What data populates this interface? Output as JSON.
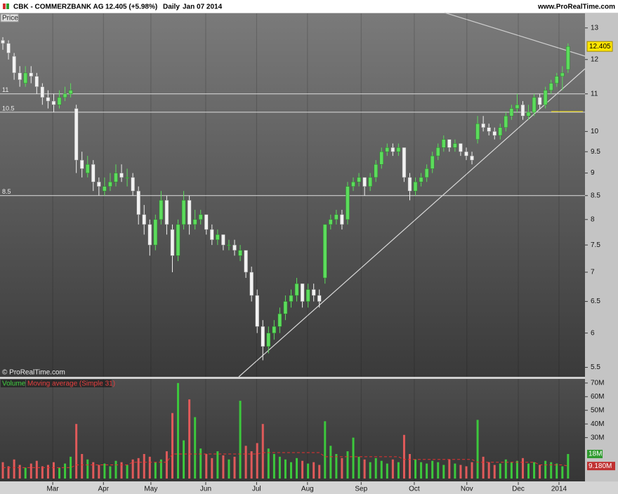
{
  "chart_data": {
    "type": "candlestick",
    "title": "CBK - COMMERZBANK AG",
    "last_price_label": "12.405 (+5.98%)",
    "interval": "Daily",
    "date": "Jan 07 2014",
    "source": "www.ProRealTime.com",
    "copyright": "© ProRealTime.com",
    "price_label": "Price",
    "last_price": 12.405,
    "log_scale": true,
    "ylim": [
      5.37,
      13.49
    ],
    "yticks": [
      13,
      12,
      11,
      10,
      9.5,
      9,
      8.5,
      8,
      7.5,
      7,
      6.5,
      6,
      5.5
    ],
    "xlim": [
      -0.5,
      103
    ],
    "xticks": [
      {
        "value": 8.83,
        "label": "Mar"
      },
      {
        "value": 17.8,
        "label": "Apr"
      },
      {
        "value": 26.2,
        "label": "May"
      },
      {
        "value": 35.9,
        "label": "Jun"
      },
      {
        "value": 44.9,
        "label": "Jul"
      },
      {
        "value": 53.9,
        "label": "Aug"
      },
      {
        "value": 63.4,
        "label": "Sep"
      },
      {
        "value": 72.8,
        "label": "Oct"
      },
      {
        "value": 82.1,
        "label": "Nov"
      },
      {
        "value": 91.2,
        "label": "Dec"
      },
      {
        "value": 98.4,
        "label": "2014"
      }
    ],
    "levels": [
      11,
      10.5,
      8.5
    ],
    "up_color": "#5cdc5c",
    "down_color": "#f2f2f2",
    "ohlc": [
      [
        12.6,
        12.7,
        12.3,
        12.5
      ],
      [
        12.5,
        12.6,
        12.0,
        12.2
      ],
      [
        12.1,
        12.2,
        11.4,
        11.6
      ],
      [
        11.6,
        11.8,
        11.2,
        11.4
      ],
      [
        11.3,
        11.8,
        11.2,
        11.6
      ],
      [
        11.6,
        11.8,
        11.3,
        11.5
      ],
      [
        11.5,
        11.6,
        11.0,
        11.2
      ],
      [
        11.2,
        11.3,
        10.7,
        10.9
      ],
      [
        10.9,
        11.1,
        10.6,
        10.8
      ],
      [
        10.8,
        11.0,
        10.5,
        10.7
      ],
      [
        10.7,
        11.1,
        10.6,
        10.9
      ],
      [
        10.9,
        11.2,
        10.8,
        11.0
      ],
      [
        11.0,
        11.3,
        10.9,
        11.1
      ],
      [
        10.6,
        10.7,
        9.0,
        9.3
      ],
      [
        9.3,
        9.5,
        8.9,
        9.1
      ],
      [
        9.0,
        9.4,
        8.9,
        9.2
      ],
      [
        9.2,
        9.3,
        8.6,
        8.8
      ],
      [
        8.8,
        8.9,
        8.5,
        8.7
      ],
      [
        8.6,
        8.9,
        8.5,
        8.7
      ],
      [
        8.7,
        9.0,
        8.6,
        8.8
      ],
      [
        8.8,
        9.2,
        8.7,
        9.0
      ],
      [
        9.0,
        9.2,
        8.8,
        8.9
      ],
      [
        8.9,
        9.1,
        8.7,
        8.9
      ],
      [
        8.9,
        9.0,
        8.5,
        8.6
      ],
      [
        8.6,
        8.7,
        7.9,
        8.1
      ],
      [
        8.1,
        8.3,
        7.7,
        7.9
      ],
      [
        7.9,
        8.0,
        7.3,
        7.5
      ],
      [
        7.5,
        8.1,
        7.4,
        8.0
      ],
      [
        8.0,
        8.6,
        7.9,
        8.4
      ],
      [
        8.4,
        8.5,
        7.7,
        7.9
      ],
      [
        7.8,
        7.9,
        7.0,
        7.3
      ],
      [
        7.3,
        8.0,
        7.2,
        7.9
      ],
      [
        7.9,
        8.6,
        7.8,
        8.4
      ],
      [
        8.4,
        8.5,
        7.7,
        7.9
      ],
      [
        7.9,
        8.2,
        7.8,
        8.0
      ],
      [
        8.0,
        8.2,
        7.9,
        8.1
      ],
      [
        8.1,
        8.1,
        7.7,
        7.8
      ],
      [
        7.8,
        7.9,
        7.5,
        7.6
      ],
      [
        7.6,
        7.8,
        7.5,
        7.7
      ],
      [
        7.7,
        7.7,
        7.4,
        7.5
      ],
      [
        7.5,
        7.6,
        7.4,
        7.5
      ],
      [
        7.5,
        7.6,
        7.3,
        7.4
      ],
      [
        7.3,
        7.5,
        7.2,
        7.4
      ],
      [
        7.4,
        7.4,
        6.9,
        7.0
      ],
      [
        7.0,
        7.1,
        6.5,
        6.6
      ],
      [
        6.6,
        6.7,
        6.0,
        6.1
      ],
      [
        6.1,
        6.2,
        5.6,
        5.8
      ],
      [
        5.8,
        6.1,
        5.7,
        6.0
      ],
      [
        6.0,
        6.2,
        5.9,
        6.1
      ],
      [
        6.1,
        6.4,
        6.0,
        6.3
      ],
      [
        6.3,
        6.6,
        6.2,
        6.5
      ],
      [
        6.5,
        6.7,
        6.4,
        6.6
      ],
      [
        6.6,
        6.9,
        6.5,
        6.8
      ],
      [
        6.8,
        6.8,
        6.4,
        6.5
      ],
      [
        6.5,
        6.8,
        6.4,
        6.7
      ],
      [
        6.7,
        6.8,
        6.5,
        6.6
      ],
      [
        6.6,
        6.7,
        6.4,
        6.5
      ],
      [
        6.9,
        7.9,
        6.8,
        7.9
      ],
      [
        7.9,
        8.1,
        7.8,
        8.0
      ],
      [
        8.0,
        8.2,
        7.9,
        8.1
      ],
      [
        8.1,
        8.2,
        7.8,
        7.9
      ],
      [
        8.0,
        8.8,
        7.9,
        8.7
      ],
      [
        8.7,
        8.9,
        8.6,
        8.8
      ],
      [
        8.8,
        9.0,
        8.7,
        8.9
      ],
      [
        8.9,
        8.9,
        8.5,
        8.7
      ],
      [
        8.7,
        9.0,
        8.6,
        8.9
      ],
      [
        8.9,
        9.3,
        8.8,
        9.2
      ],
      [
        9.2,
        9.6,
        9.1,
        9.5
      ],
      [
        9.5,
        9.7,
        9.4,
        9.6
      ],
      [
        9.6,
        9.7,
        9.4,
        9.5
      ],
      [
        9.5,
        9.7,
        9.4,
        9.6
      ],
      [
        9.6,
        9.6,
        8.8,
        8.9
      ],
      [
        8.9,
        9.0,
        8.4,
        8.6
      ],
      [
        8.6,
        8.9,
        8.5,
        8.8
      ],
      [
        8.8,
        9.0,
        8.7,
        8.9
      ],
      [
        8.9,
        9.2,
        8.8,
        9.1
      ],
      [
        9.1,
        9.5,
        9.0,
        9.4
      ],
      [
        9.4,
        9.7,
        9.3,
        9.6
      ],
      [
        9.6,
        9.9,
        9.5,
        9.8
      ],
      [
        9.8,
        9.8,
        9.5,
        9.6
      ],
      [
        9.6,
        9.8,
        9.5,
        9.7
      ],
      [
        9.7,
        9.7,
        9.4,
        9.5
      ],
      [
        9.5,
        9.6,
        9.3,
        9.4
      ],
      [
        9.4,
        9.5,
        9.2,
        9.3
      ],
      [
        9.8,
        10.4,
        9.7,
        10.2
      ],
      [
        10.2,
        10.4,
        10.0,
        10.1
      ],
      [
        10.1,
        10.2,
        9.9,
        10.0
      ],
      [
        10.0,
        10.1,
        9.8,
        9.9
      ],
      [
        9.9,
        10.2,
        9.8,
        10.1
      ],
      [
        10.1,
        10.5,
        10.0,
        10.4
      ],
      [
        10.4,
        10.7,
        10.3,
        10.6
      ],
      [
        10.6,
        11.0,
        10.5,
        10.7
      ],
      [
        10.7,
        10.8,
        10.3,
        10.4
      ],
      [
        10.4,
        10.7,
        10.3,
        10.5
      ],
      [
        10.5,
        11.0,
        10.4,
        10.9
      ],
      [
        10.9,
        11.0,
        10.6,
        10.7
      ],
      [
        10.7,
        11.2,
        10.6,
        11.1
      ],
      [
        11.1,
        11.4,
        11.0,
        11.3
      ],
      [
        11.3,
        11.6,
        11.2,
        11.5
      ],
      [
        11.5,
        11.8,
        11.1,
        11.6
      ],
      [
        11.7,
        12.5,
        11.6,
        12.405
      ]
    ],
    "volume": {
      "name": "Volume",
      "ma_name": "Moving average (Simple 31)",
      "values": [
        12,
        9,
        14,
        10,
        8,
        11,
        13,
        9,
        10,
        12,
        8,
        11,
        16,
        40,
        18,
        14,
        12,
        10,
        11,
        9,
        13,
        12,
        10,
        14,
        15,
        18,
        16,
        12,
        14,
        20,
        48,
        70,
        28,
        58,
        45,
        22,
        18,
        15,
        20,
        17,
        14,
        16,
        57,
        24,
        20,
        26,
        40,
        22,
        18,
        16,
        14,
        12,
        15,
        13,
        11,
        12,
        10,
        42,
        24,
        18,
        15,
        20,
        30,
        16,
        14,
        12,
        15,
        13,
        11,
        14,
        12,
        32,
        18,
        14,
        12,
        11,
        13,
        12,
        10,
        14,
        11,
        10,
        9,
        12,
        43,
        16,
        12,
        10,
        11,
        14,
        12,
        13,
        15,
        11,
        12,
        10,
        13,
        12,
        11,
        9,
        18
      ],
      "ma": [
        8,
        8,
        8,
        8,
        8,
        8,
        8,
        8,
        8,
        8,
        8,
        8,
        8,
        10,
        10,
        10,
        10,
        10,
        10,
        10,
        10,
        10,
        10,
        12,
        12,
        12,
        12,
        12,
        12,
        12,
        18,
        18,
        18,
        18,
        18,
        18,
        18,
        18,
        18,
        18,
        18,
        18,
        18,
        18,
        18,
        18,
        19,
        19,
        19,
        19,
        19,
        19,
        19,
        19,
        19,
        19,
        19,
        16,
        16,
        16,
        16,
        16,
        16,
        16,
        16,
        16,
        16,
        16,
        16,
        16,
        16,
        14,
        14,
        14,
        14,
        14,
        14,
        14,
        14,
        14,
        14,
        14,
        14,
        14,
        12,
        12,
        12,
        12,
        12,
        12,
        12,
        12,
        12,
        12,
        12,
        10,
        10,
        10,
        10,
        10,
        9.18
      ],
      "ylim": [
        0,
        73
      ],
      "yticks": [
        {
          "value": 70,
          "label": "70M"
        },
        {
          "value": 60,
          "label": "60M"
        },
        {
          "value": 50,
          "label": "50M"
        },
        {
          "value": 40,
          "label": "40M"
        },
        {
          "value": 30,
          "label": "30M"
        }
      ],
      "last_label": "18M",
      "ma_label": "9.180M",
      "up_color": "#3cc83c",
      "down_color": "#e05a5a",
      "ma_color": "#e83030"
    }
  }
}
